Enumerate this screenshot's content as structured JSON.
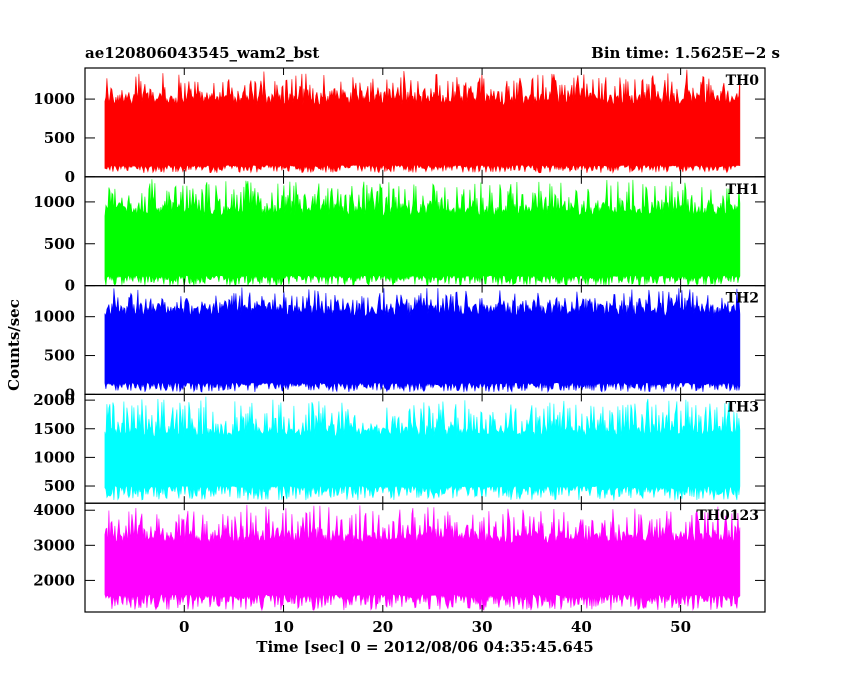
{
  "header": {
    "title_left": "ae120806043545_wam2_bst",
    "title_right": "Bin time: 1.5625E−2 s"
  },
  "chart_data": {
    "type": "line",
    "xlabel": "Time [sec] 0 = 2012/08/06 04:35:45.645",
    "ylabel": "Counts/sec",
    "xlim": [
      -10,
      58.5
    ],
    "x_ticks": [
      0,
      10,
      20,
      30,
      40,
      50
    ],
    "x_range_data": [
      -8,
      56
    ],
    "panels": [
      {
        "name": "TH0",
        "color": "#ff0000",
        "ylim": [
          0,
          1400
        ],
        "y_ticks": [
          0,
          500,
          1000
        ],
        "typical_range": [
          150,
          1050
        ],
        "peak_max": 1400,
        "min_floor": 50
      },
      {
        "name": "TH1",
        "color": "#00ff00",
        "ylim": [
          0,
          1300
        ],
        "y_ticks": [
          0,
          500,
          1000
        ],
        "typical_range": [
          120,
          950
        ],
        "peak_max": 1300,
        "min_floor": 0
      },
      {
        "name": "TH2",
        "color": "#0000ff",
        "ylim": [
          0,
          1400
        ],
        "y_ticks": [
          0,
          500,
          1000
        ],
        "typical_range": [
          150,
          1150
        ],
        "peak_max": 1400,
        "min_floor": 30
      },
      {
        "name": "TH3",
        "color": "#00ffff",
        "ylim": [
          200,
          2100
        ],
        "y_ticks": [
          500,
          1000,
          1500,
          2000
        ],
        "typical_range": [
          500,
          1500
        ],
        "peak_max": 2100,
        "min_floor": 250
      },
      {
        "name": "TH0123",
        "color": "#ff00ff",
        "ylim": [
          1100,
          4200
        ],
        "y_ticks": [
          2000,
          3000,
          4000
        ],
        "typical_range": [
          1600,
          3300
        ],
        "peak_max": 4200,
        "min_floor": 1150
      }
    ]
  }
}
